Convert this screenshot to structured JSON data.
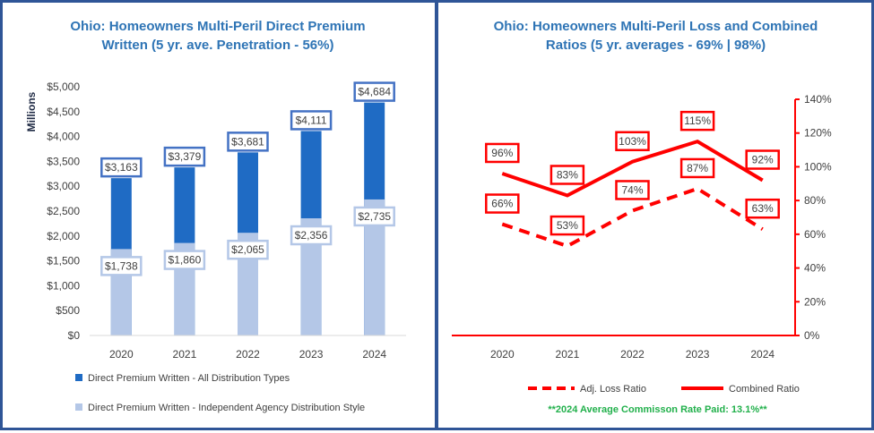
{
  "left_panel": {
    "title_line1": "Ohio: Homeowners Multi-Peril Direct Premium",
    "title_line2": "Written (5 yr. ave. Penetration - 56%)"
  },
  "right_panel": {
    "title_line1": "Ohio: Homeowners Multi-Peril Loss and Combined",
    "title_line2": "Ratios (5 yr. averages - 69% | 98%)",
    "footnote": "**2024 Average Commisson Rate Paid: 13.1%**"
  },
  "colors": {
    "border": "#2f5597",
    "title": "#2e74b5",
    "bar_total": "#1f6bc4",
    "bar_agency": "#b4c7e7",
    "label_total_border": "#4472c4",
    "label_agency_border": "#b4c7e7",
    "ratio": "#ff0000",
    "footnote": "#21b04b"
  },
  "chart_data": [
    {
      "type": "bar",
      "categories": [
        "2020",
        "2021",
        "2022",
        "2023",
        "2024"
      ],
      "ylabel": "Millions",
      "ylim": [
        0,
        5000
      ],
      "yticks": [
        "$0",
        "$500",
        "$1,000",
        "$1,500",
        "$2,000",
        "$2,500",
        "$3,000",
        "$3,500",
        "$4,000",
        "$4,500",
        "$5,000"
      ],
      "ytick_values": [
        0,
        500,
        1000,
        1500,
        2000,
        2500,
        3000,
        3500,
        4000,
        4500,
        5000
      ],
      "legend_position": "bottom",
      "series": [
        {
          "name": "Direct Premium Written - All Distribution Types",
          "values": [
            3163,
            3379,
            3681,
            4111,
            4684
          ],
          "labels": [
            "$3,163",
            "$3,379",
            "$3,681",
            "$4,111",
            "$4,684"
          ]
        },
        {
          "name": "Direct Premium Written - Independent Agency Distribution Style",
          "values": [
            1738,
            1860,
            2065,
            2356,
            2735
          ],
          "labels": [
            "$1,738",
            "$1,860",
            "$2,065",
            "$2,356",
            "$2,735"
          ]
        }
      ]
    },
    {
      "type": "line",
      "categories": [
        "2020",
        "2021",
        "2022",
        "2023",
        "2024"
      ],
      "ylim": [
        0,
        140
      ],
      "yaxis_position": "right",
      "yticks": [
        "0%",
        "20%",
        "40%",
        "60%",
        "80%",
        "100%",
        "120%",
        "140%"
      ],
      "ytick_values": [
        0,
        20,
        40,
        60,
        80,
        100,
        120,
        140
      ],
      "legend_position": "bottom",
      "series": [
        {
          "name": "Adj. Loss Ratio",
          "style": "dashed",
          "values": [
            66,
            53,
            74,
            87,
            63
          ],
          "labels": [
            "66%",
            "53%",
            "74%",
            "87%",
            "63%"
          ]
        },
        {
          "name": "Combined Ratio",
          "style": "solid",
          "values": [
            96,
            83,
            103,
            115,
            92
          ],
          "labels": [
            "96%",
            "83%",
            "103%",
            "115%",
            "92%"
          ]
        }
      ]
    }
  ]
}
